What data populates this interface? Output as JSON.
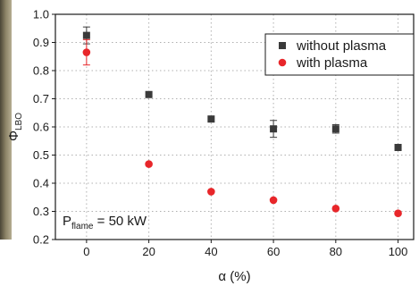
{
  "chart_data": {
    "type": "scatter",
    "xlabel": "α (%)",
    "ylabel_main": "Φ",
    "ylabel_sub": "LBO",
    "xlim": [
      -10,
      105
    ],
    "ylim": [
      0.2,
      1.0
    ],
    "xticks": [
      0,
      20,
      40,
      60,
      80,
      100
    ],
    "yticks": [
      0.2,
      0.3,
      0.4,
      0.5,
      0.6,
      0.7,
      0.8,
      0.9,
      1.0
    ],
    "grid": "dotted",
    "legend_position": "top-right",
    "series": [
      {
        "name": "without plasma",
        "marker": "square",
        "color": "#3a3a3a",
        "points": [
          {
            "x": 0,
            "y": 0.925,
            "err": 0.03
          },
          {
            "x": 20,
            "y": 0.715,
            "err": 0.0
          },
          {
            "x": 40,
            "y": 0.628,
            "err": 0.0
          },
          {
            "x": 60,
            "y": 0.593,
            "err": 0.03
          },
          {
            "x": 80,
            "y": 0.593,
            "err": 0.015
          },
          {
            "x": 100,
            "y": 0.527,
            "err": 0.0
          }
        ]
      },
      {
        "name": "with plasma",
        "marker": "circle",
        "color": "#e8262a",
        "points": [
          {
            "x": 0,
            "y": 0.865,
            "err": 0.045
          },
          {
            "x": 20,
            "y": 0.468,
            "err": 0.0
          },
          {
            "x": 40,
            "y": 0.37,
            "err": 0.0
          },
          {
            "x": 60,
            "y": 0.34,
            "err": 0.0
          },
          {
            "x": 80,
            "y": 0.31,
            "err": 0.0
          },
          {
            "x": 100,
            "y": 0.293,
            "err": 0.0
          }
        ]
      }
    ],
    "annotation": {
      "main": "P",
      "sub": "flame",
      "rest": " = 50 kW"
    }
  },
  "background": {
    "left_strip_color": "#7a7058"
  }
}
